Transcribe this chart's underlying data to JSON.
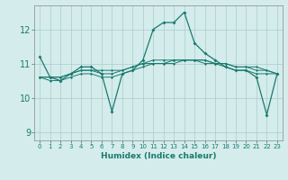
{
  "xlabel": "Humidex (Indice chaleur)",
  "ylabel": "",
  "bg_color": "#d4ecec",
  "line_color": "#1a7a6e",
  "grid_color": "#aacccc",
  "xlim": [
    -0.5,
    23.5
  ],
  "ylim": [
    8.75,
    12.7
  ],
  "yticks": [
    9,
    10,
    11,
    12
  ],
  "xtick_labels": [
    "0",
    "1",
    "2",
    "3",
    "4",
    "5",
    "6",
    "7",
    "8",
    "9",
    "10",
    "11",
    "12",
    "13",
    "14",
    "15",
    "16",
    "17",
    "18",
    "19",
    "20",
    "21",
    "22",
    "23"
  ],
  "series": [
    [
      11.2,
      10.6,
      10.5,
      10.7,
      10.9,
      10.9,
      10.7,
      9.6,
      10.7,
      10.8,
      11.1,
      12.0,
      12.2,
      12.2,
      12.5,
      11.6,
      11.3,
      11.1,
      10.9,
      10.8,
      10.8,
      10.6,
      9.5,
      10.7
    ],
    [
      10.6,
      10.6,
      10.6,
      10.7,
      10.8,
      10.8,
      10.7,
      10.7,
      10.8,
      10.9,
      11.0,
      11.1,
      11.1,
      11.1,
      11.1,
      11.1,
      11.0,
      11.0,
      11.0,
      10.9,
      10.9,
      10.8,
      10.8,
      10.7
    ],
    [
      10.6,
      10.6,
      10.6,
      10.7,
      10.8,
      10.8,
      10.8,
      10.8,
      10.8,
      10.9,
      11.0,
      11.0,
      11.0,
      11.0,
      11.1,
      11.1,
      11.1,
      11.0,
      11.0,
      10.9,
      10.9,
      10.9,
      10.8,
      10.7
    ],
    [
      10.6,
      10.5,
      10.5,
      10.6,
      10.7,
      10.7,
      10.6,
      10.6,
      10.7,
      10.8,
      10.9,
      11.0,
      11.0,
      11.1,
      11.1,
      11.1,
      11.1,
      11.0,
      10.9,
      10.8,
      10.8,
      10.7,
      10.7,
      10.7
    ]
  ]
}
